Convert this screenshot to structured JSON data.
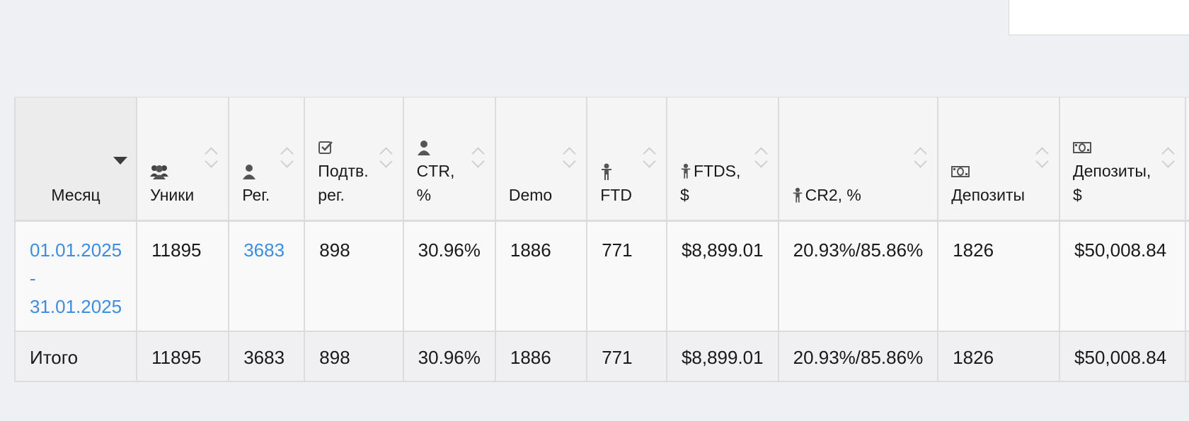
{
  "columns": [
    {
      "label": "Месяц",
      "icon": null
    },
    {
      "label": "Уники",
      "icon": "users-icon"
    },
    {
      "label": "Рег.",
      "icon": "user-icon"
    },
    {
      "label": "Подтв. рег.",
      "icon": "checkbox-icon"
    },
    {
      "label": "CTR, %",
      "icon": "user-icon"
    },
    {
      "label": "Demo",
      "icon": null
    },
    {
      "label": "FTD",
      "icon": "person-icon"
    },
    {
      "label": "FTDS, $",
      "icon": "person-icon"
    },
    {
      "label": "CR2, %",
      "icon": "person-icon"
    },
    {
      "label": "Депозиты",
      "icon": "money-icon"
    },
    {
      "label": "Депозиты, $",
      "icon": "money-icon"
    }
  ],
  "rows": [
    {
      "period_start": "01.01.2025",
      "period_sep": "-",
      "period_end": "31.01.2025",
      "uniques": "11895",
      "registrations": "3683",
      "confirmed_registrations": "898",
      "ctr": "30.96%",
      "demo": "1886",
      "ftd": "771",
      "ftds": "$8,899.01",
      "cr2": "20.93%/85.86%",
      "deposits": "1826",
      "deposits_amount": "$50,008.84"
    }
  ],
  "total": {
    "label": "Итого",
    "uniques": "11895",
    "registrations": "3683",
    "confirmed_registrations": "898",
    "ctr": "30.96%",
    "demo": "1886",
    "ftd": "771",
    "ftds": "$8,899.01",
    "cr2": "20.93%/85.86%",
    "deposits": "1826",
    "deposits_amount": "$50,008.84"
  },
  "colors": {
    "link": "#3d8de0",
    "background": "#eff0f4",
    "header_bg": "#f5f5f5"
  }
}
